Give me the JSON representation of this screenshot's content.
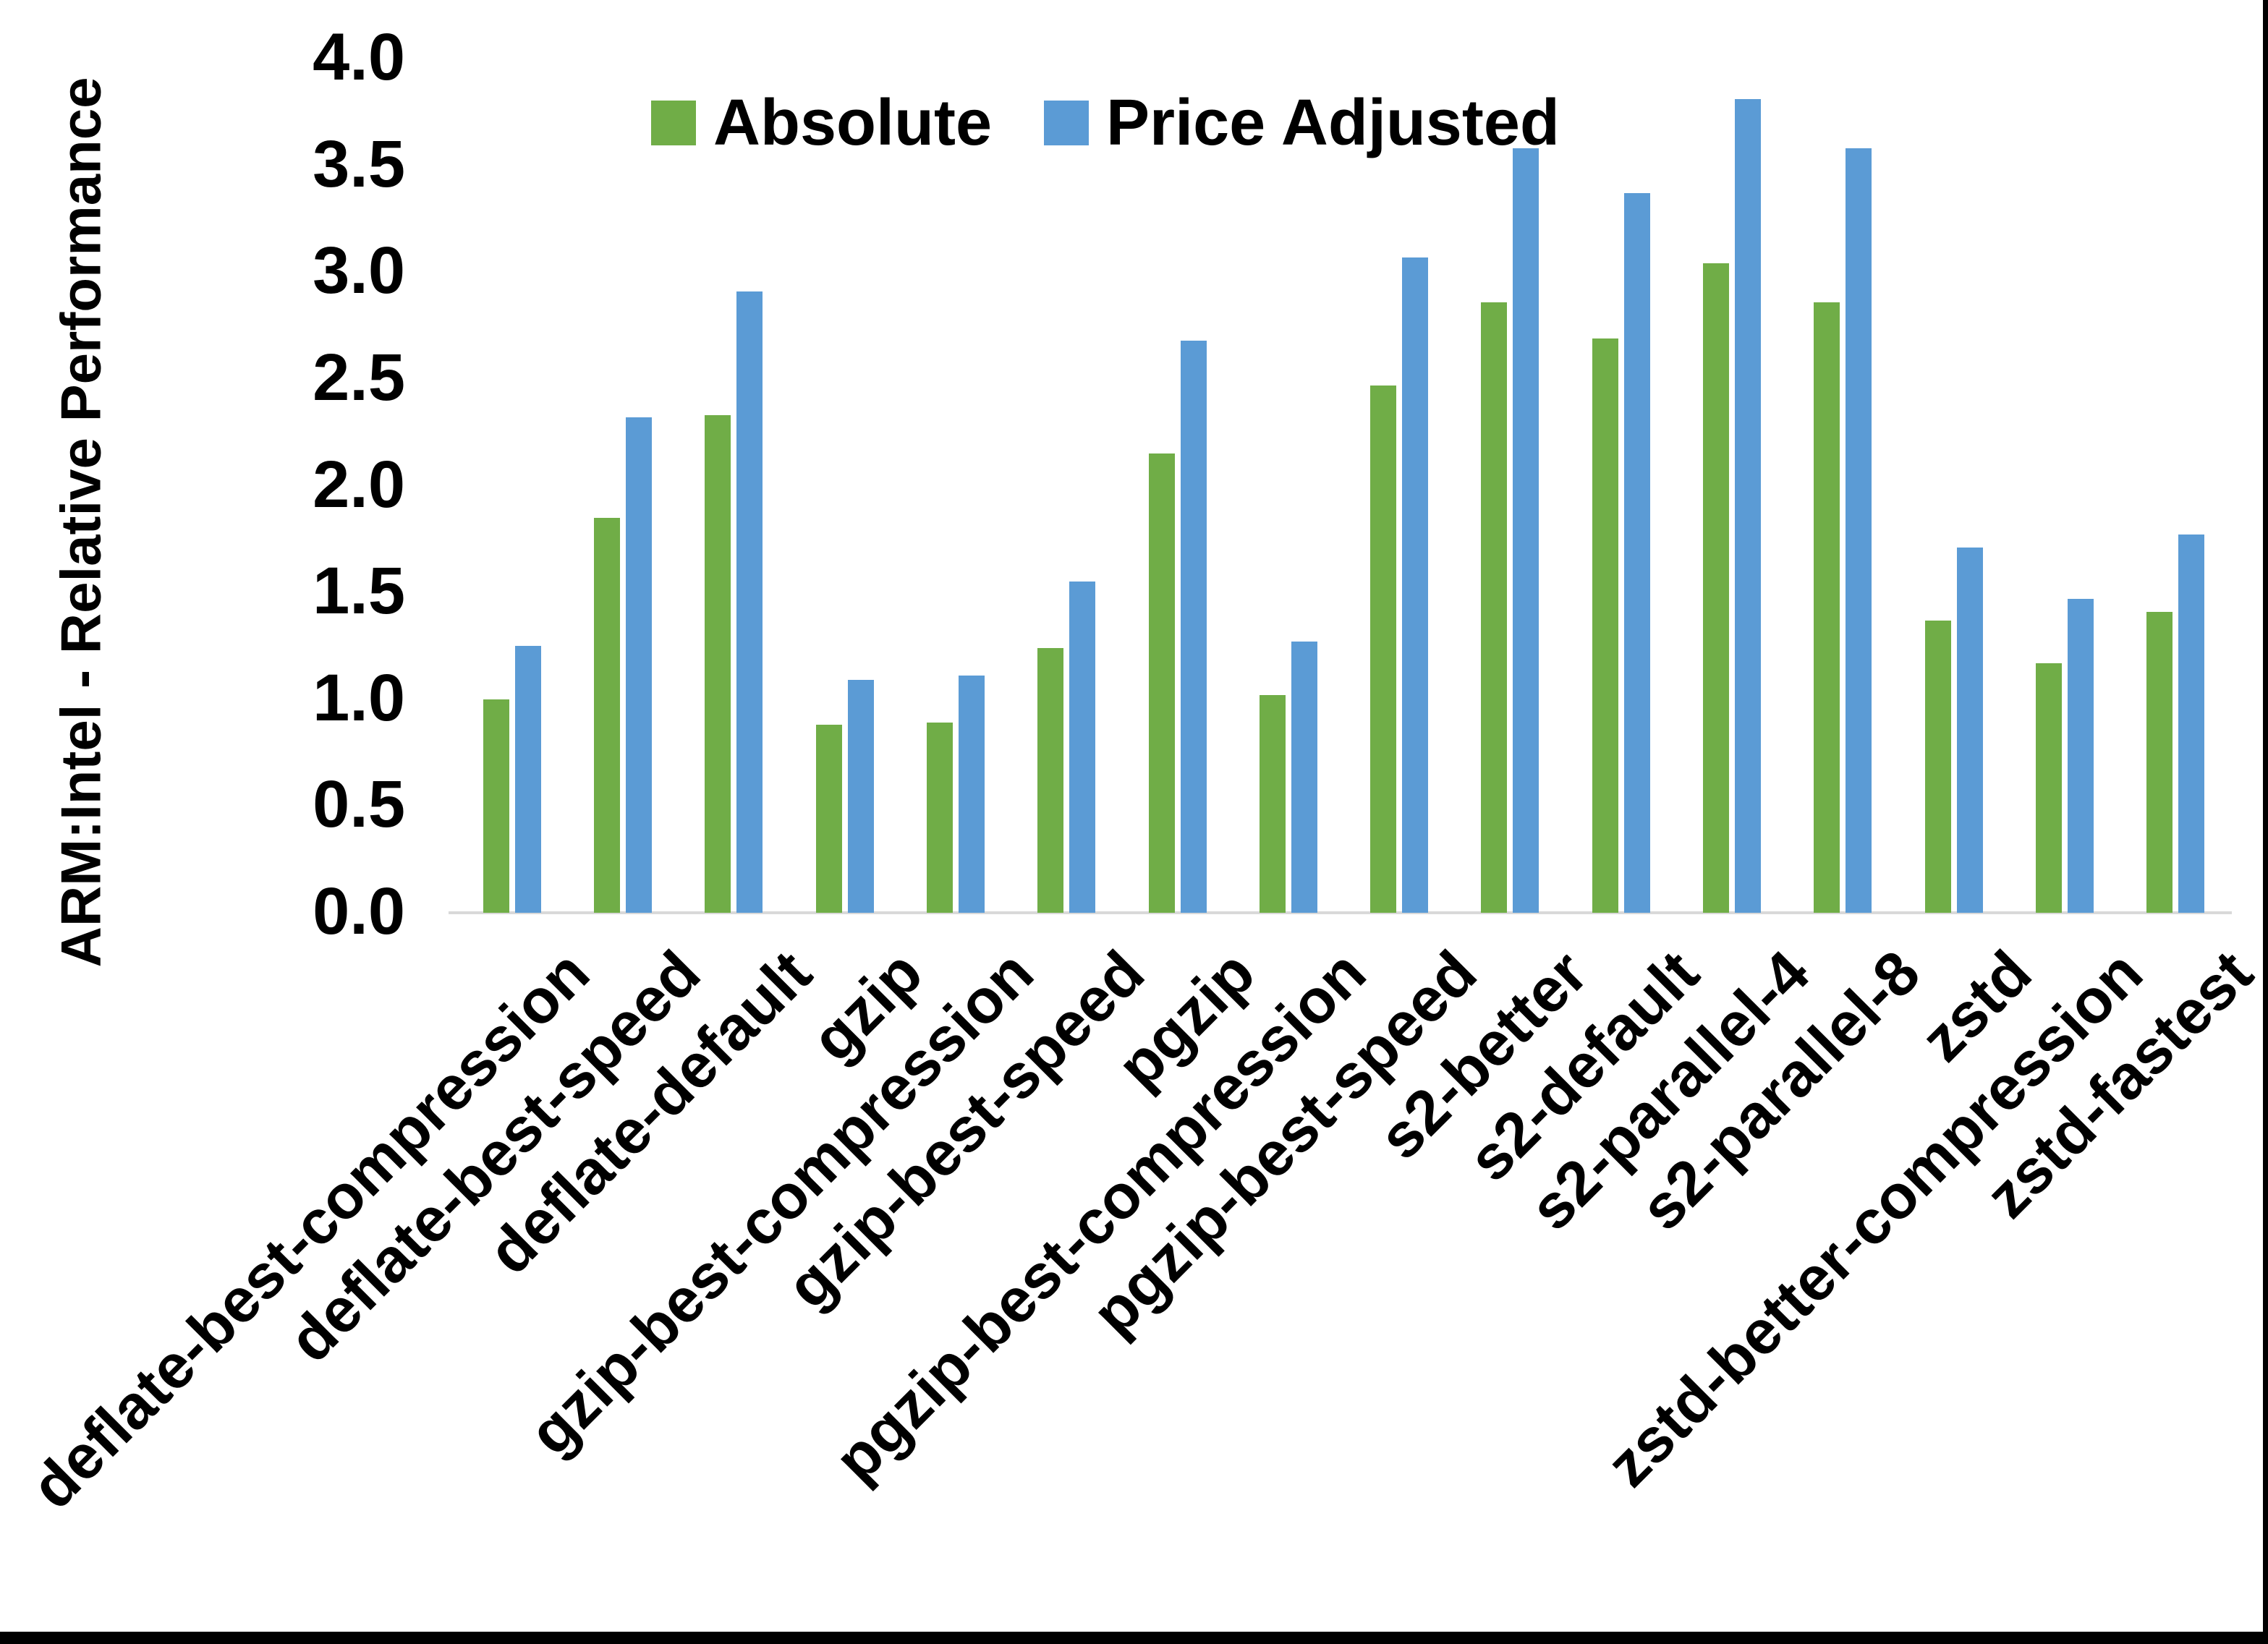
{
  "chart_data": {
    "type": "bar",
    "title": "",
    "ylabel": "ARM:Intel - Relative Performance",
    "xlabel": "",
    "ylim": [
      0.0,
      4.0
    ],
    "ytick_step": 0.5,
    "yticks": [
      "0.0",
      "0.5",
      "1.0",
      "1.5",
      "2.0",
      "2.5",
      "3.0",
      "3.5",
      "4.0"
    ],
    "grid": false,
    "legend_position": "top-center",
    "categories": [
      "deflate-best-compression",
      "deflate-best-speed",
      "deflate-default",
      "gzip",
      "gzip-best-compression",
      "gzip-best-speed",
      "pgzip",
      "pgzip-best-compression",
      "pgzip-best-speed",
      "s2-better",
      "s2-default",
      "s2-parallel-4",
      "s2-parallel-8",
      "zstd",
      "zstd-better-compression",
      "zstd-fastest"
    ],
    "series": [
      {
        "name": "Absolute",
        "color": "#70AD47",
        "values": [
          1.0,
          1.85,
          2.33,
          0.88,
          0.89,
          1.24,
          2.15,
          1.02,
          2.47,
          2.86,
          2.69,
          3.04,
          2.86,
          1.37,
          1.17,
          1.41
        ]
      },
      {
        "name": "Price Adjusted",
        "color": "#5B9BD5",
        "values": [
          1.25,
          2.32,
          2.91,
          1.09,
          1.11,
          1.55,
          2.68,
          1.27,
          3.07,
          3.58,
          3.37,
          3.81,
          3.58,
          1.71,
          1.47,
          1.77
        ]
      }
    ],
    "axis_line_color": "#D9D9D9",
    "text_color": "#000000",
    "background_color": "#FFFFFF",
    "frame_border_color": "#000000"
  }
}
